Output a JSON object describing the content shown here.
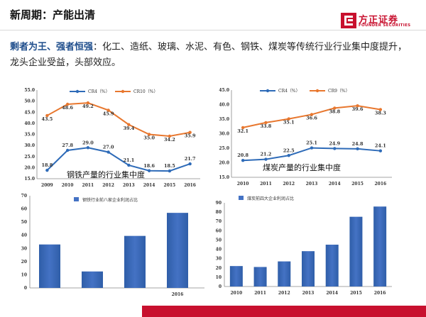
{
  "title": "新周期：产能出清",
  "logo": {
    "cn": "方正证券",
    "en": "FOUNDER SECURITIES"
  },
  "intro": {
    "emphasis": "剩者为王、强者恒强",
    "rest": "：化工、造纸、玻璃、水泥、有色、钢铁、煤炭等传统行业行业集中度提升，龙头企业受益，头部效应。"
  },
  "colors": {
    "blue": "#2e6bb8",
    "orange": "#e8772e",
    "bar": "#4472c4",
    "brand": "#c8102e"
  },
  "chart_data": [
    {
      "type": "line",
      "caption": "钢铁产量的行业集中度",
      "categories": [
        "2009",
        "2010",
        "2011",
        "2012",
        "2013",
        "2014",
        "2015",
        "2016"
      ],
      "series": [
        {
          "name": "CR4（%）",
          "values": [
            18.8,
            27.8,
            29.0,
            27.0,
            21.1,
            18.6,
            18.5,
            21.7
          ],
          "labels": [
            "18.8",
            "27.8",
            "29.0",
            "27.0",
            "21.1",
            "18.6",
            "18.5",
            "21.7"
          ]
        },
        {
          "name": "CR10（%）",
          "values": [
            43.5,
            48.6,
            49.2,
            45.9,
            39.4,
            35.0,
            34.2,
            35.9
          ],
          "labels": [
            "43.5",
            "48.6",
            "49.2",
            "45.9",
            "39.4",
            "35.0",
            "34.2",
            "35.9"
          ]
        }
      ],
      "ylim": [
        15.0,
        55.0
      ],
      "yticks": [
        "15.0",
        "20.0",
        "25.0",
        "30.0",
        "35.0",
        "40.0",
        "45.0",
        "50.0",
        "55.0"
      ]
    },
    {
      "type": "line",
      "caption": "煤炭产量的行业集中度",
      "categories": [
        "2010",
        "2011",
        "2012",
        "2013",
        "2014",
        "2015",
        "2016"
      ],
      "series": [
        {
          "name": "CR4（%）",
          "values": [
            20.8,
            21.2,
            22.5,
            25.1,
            24.9,
            24.8,
            24.1
          ],
          "labels": [
            "20.8",
            "21.2",
            "22.5",
            "25.1",
            "24.9",
            "24.8",
            "24.1"
          ]
        },
        {
          "name": "CR9（%）",
          "values": [
            32.1,
            33.8,
            35.1,
            36.6,
            38.8,
            39.6,
            38.3
          ],
          "labels": [
            "32.1",
            "33.8",
            "35.1",
            "36.6",
            "38.8",
            "39.6",
            "38.3"
          ]
        }
      ],
      "ylim": [
        15.0,
        45.0
      ],
      "yticks": [
        "15.0",
        "20.0",
        "25.0",
        "30.0",
        "35.0",
        "40.0",
        "45.0"
      ]
    },
    {
      "type": "bar",
      "legend": "钢铁行业前八家企业利润占比",
      "values": [
        33,
        12.5,
        39.5,
        57
      ],
      "xlabels": [
        "",
        "",
        "",
        "2016"
      ],
      "ylim": [
        0,
        70
      ],
      "yticks": [
        "0",
        "10",
        "20",
        "30",
        "40",
        "50",
        "60",
        "70"
      ]
    },
    {
      "type": "bar",
      "legend": "煤炭前四大企业利润占比",
      "categories": [
        "2010",
        "2011",
        "2012",
        "2013",
        "2014",
        "2015",
        "2016"
      ],
      "values": [
        22,
        21,
        27,
        38,
        45,
        75,
        86
      ],
      "ylim": [
        0,
        90
      ],
      "yticks": [
        "0",
        "10",
        "20",
        "30",
        "40",
        "50",
        "60",
        "70",
        "80",
        "90"
      ]
    }
  ]
}
